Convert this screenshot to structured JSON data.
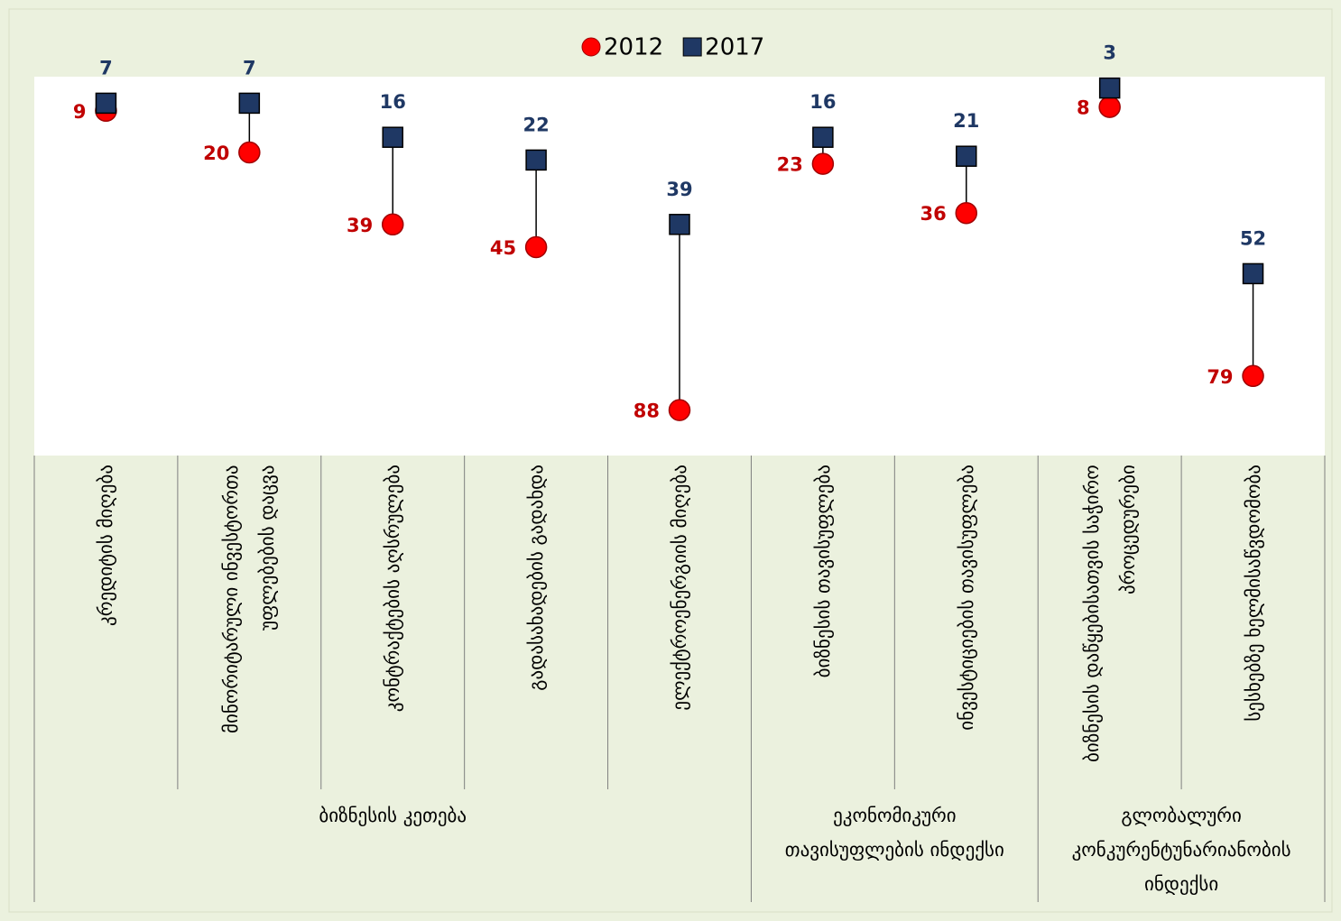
{
  "chart_data": {
    "type": "dumbbell",
    "groups": [
      {
        "name": "ბიზნესის კეთება",
        "categories": [
          "კრედიტის მიღება",
          "მინორიტარული ინვესტორთა უფლებების დაცვა",
          "კონტრაქტების აღსრულება",
          "გადასახადების გადახდა",
          "ელექტროენერგიის მიღება"
        ]
      },
      {
        "name": "ეკონომიკური თავისუფლების ინდექსი",
        "categories": [
          "ბიზნესის თავისუფლება",
          "ინვესტიციების თავისუფლება"
        ]
      },
      {
        "name": "გლობალური კონკურენტუნარიანობის ინდექსი",
        "categories": [
          "ბიზნესის დაწყებისათვის საჭირო პროცედურები",
          "სესხებზე ხელმისაწვდომობა"
        ]
      }
    ],
    "series": [
      {
        "name": "2012",
        "color": "#ff0000",
        "marker": "circle",
        "values": [
          9,
          20,
          39,
          45,
          88,
          23,
          36,
          8,
          79
        ]
      },
      {
        "name": "2017",
        "color": "#1f3864",
        "marker": "square",
        "values": [
          7,
          7,
          16,
          22,
          39,
          16,
          21,
          3,
          52
        ]
      }
    ],
    "ylim": [
      0,
      100
    ],
    "y_inverted": true,
    "legend": "top"
  }
}
